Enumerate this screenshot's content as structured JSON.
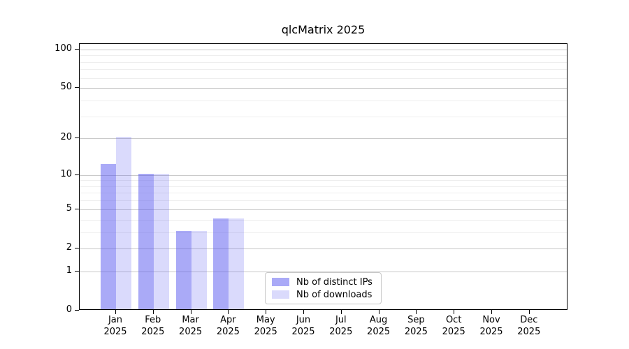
{
  "chart_data": {
    "type": "bar",
    "title": "qlcMatrix 2025",
    "categories": [
      "Jan",
      "Feb",
      "Mar",
      "Apr",
      "May",
      "Jun",
      "Jul",
      "Aug",
      "Sep",
      "Oct",
      "Nov",
      "Dec"
    ],
    "year_label": "2025",
    "series": [
      {
        "name": "Nb of distinct IPs",
        "color": "rgba(85,85,240,0.5)",
        "values": [
          12,
          10,
          3,
          4,
          0,
          0,
          0,
          0,
          0,
          0,
          0,
          0
        ]
      },
      {
        "name": "Nb of downloads",
        "color": "rgba(85,85,240,0.22)",
        "values": [
          20,
          10,
          3,
          4,
          0,
          0,
          0,
          0,
          0,
          0,
          0,
          0
        ]
      }
    ],
    "yscale": "log1p",
    "ylim": [
      0,
      110
    ],
    "yticks": [
      0,
      1,
      2,
      5,
      10,
      20,
      50,
      100
    ],
    "yticks_minor": [
      3,
      4,
      6,
      7,
      8,
      9,
      30,
      40,
      60,
      70,
      80,
      90
    ],
    "xlabel": "",
    "ylabel": "",
    "grid": "horizontal",
    "legend_position": "inside lower-center"
  },
  "colors": {
    "major_grid": "#c9c9c9",
    "minor_grid": "#eeeeee",
    "axis": "#000000",
    "background": "#ffffff",
    "legend_border": "#c8c8c8"
  }
}
